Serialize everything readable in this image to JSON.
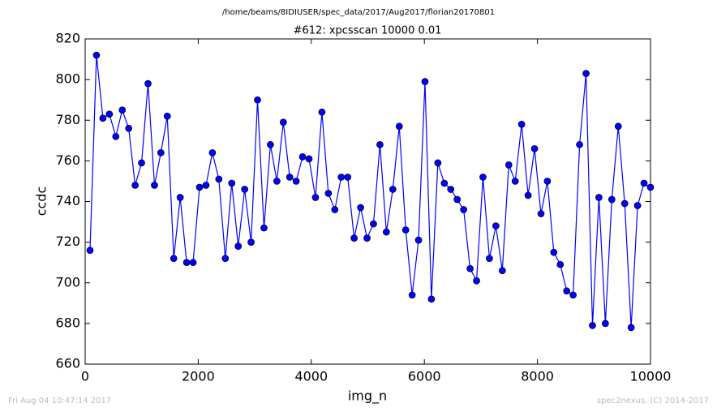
{
  "chart_data": {
    "type": "line",
    "suptitle": "/home/beams/8IDIUSER/spec_data/2017/Aug2017/florian20170801",
    "title": "#612: xpcsscan 10000 0.01",
    "xlabel": "img_n",
    "ylabel": "ccdc",
    "footer_left": "Fri Aug 04 10:47:14 2017",
    "footer_right": "spec2nexus, (C) 2014-2017",
    "xlim": [
      0,
      10000
    ],
    "xticks": [
      0,
      2000,
      4000,
      6000,
      8000,
      10000
    ],
    "ylim": [
      660,
      820
    ],
    "yticks": [
      660,
      680,
      700,
      720,
      740,
      760,
      780,
      800,
      820
    ],
    "x": [
      86,
      200,
      314,
      428,
      542,
      656,
      770,
      884,
      998,
      1112,
      1226,
      1339,
      1453,
      1567,
      1681,
      1795,
      1909,
      2023,
      2137,
      2251,
      2365,
      2479,
      2593,
      2707,
      2821,
      2935,
      3049,
      3163,
      3277,
      3391,
      3505,
      3618,
      3732,
      3846,
      3960,
      4074,
      4188,
      4302,
      4416,
      4530,
      4644,
      4758,
      4872,
      4986,
      5100,
      5214,
      5328,
      5442,
      5556,
      5670,
      5784,
      5897,
      6011,
      6125,
      6239,
      6353,
      6467,
      6581,
      6695,
      6809,
      6923,
      7037,
      7151,
      7265,
      7379,
      7493,
      7607,
      7721,
      7835,
      7949,
      8063,
      8176,
      8290,
      8404,
      8518,
      8632,
      8746,
      8860,
      8974,
      9088,
      9202,
      9316,
      9430,
      9544,
      9658,
      9772,
      9886,
      10000
    ],
    "series": [
      {
        "color": "#0000ff",
        "values": [
          716,
          812,
          781,
          783,
          772,
          785,
          776,
          748,
          759,
          798,
          748,
          764,
          782,
          712,
          742,
          710,
          710,
          747,
          748,
          764,
          751,
          712,
          749,
          718,
          746,
          720,
          790,
          727,
          768,
          750,
          779,
          752,
          750,
          762,
          761,
          742,
          784,
          744,
          736,
          752,
          752,
          722,
          737,
          722,
          729,
          768,
          725,
          746,
          777,
          726,
          694,
          721,
          799,
          692,
          759,
          749,
          746,
          741,
          736,
          707,
          701,
          752,
          712,
          728,
          706,
          758,
          750,
          778,
          743,
          766,
          734,
          750,
          715,
          709,
          696,
          694,
          768,
          803,
          679,
          742,
          680,
          741,
          777,
          739,
          678,
          738,
          749,
          747
        ]
      }
    ]
  }
}
